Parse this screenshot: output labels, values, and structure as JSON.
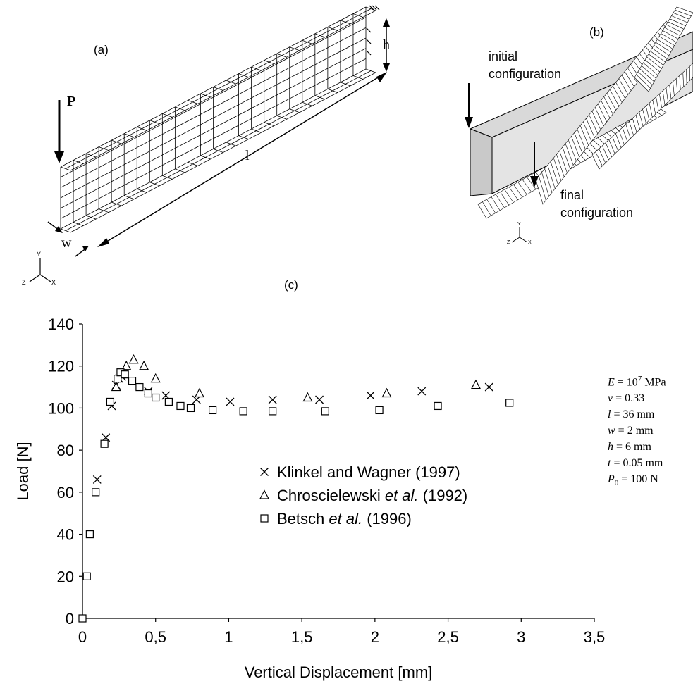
{
  "panels": {
    "a": {
      "label": "(a)",
      "load_label": "P",
      "dim_h": "h",
      "dim_l": "l",
      "dim_w": "w"
    },
    "b": {
      "label": "(b)",
      "initial_label": "initial\nconfiguration",
      "final_label": "final\nconfiguration"
    },
    "c": {
      "label": "(c)"
    }
  },
  "axes_triad": {
    "y": "Y",
    "z": "Z",
    "x": "X"
  },
  "params": [
    {
      "sym": "E",
      "rest": " = 10",
      "sup": "7",
      "tail": " MPa"
    },
    {
      "sym": "ν",
      "rest": " = 0.33",
      "sup": "",
      "tail": ""
    },
    {
      "sym": "l",
      "rest": " = 36 mm",
      "sup": "",
      "tail": ""
    },
    {
      "sym": "w",
      "rest": " = 2 mm",
      "sup": "",
      "tail": ""
    },
    {
      "sym": "h",
      "rest": " = 6 mm",
      "sup": "",
      "tail": ""
    },
    {
      "sym": "t",
      "rest": " = 0.05 mm",
      "sup": "",
      "tail": ""
    },
    {
      "sym": "P",
      "sub": "0",
      "rest": " = 100 N",
      "sup": "",
      "tail": ""
    }
  ],
  "chart_data": {
    "type": "scatter",
    "xlabel": "Vertical Displacement [mm]",
    "ylabel": "Load [N]",
    "xlim": [
      0,
      3.5
    ],
    "ylim": [
      0,
      140
    ],
    "xticks": [
      "0",
      "0,5",
      "1",
      "1,5",
      "2",
      "2,5",
      "3",
      "3,5"
    ],
    "xtick_values": [
      0,
      0.5,
      1,
      1.5,
      2,
      2.5,
      3,
      3.5
    ],
    "yticks": [
      "0",
      "20",
      "40",
      "60",
      "80",
      "100",
      "120",
      "140"
    ],
    "ytick_values": [
      0,
      20,
      40,
      60,
      80,
      100,
      120,
      140
    ],
    "grid": false,
    "legend_position": "center",
    "series": [
      {
        "name": "Klinkel and Wagner (1997)",
        "name_parts": [
          "Klinkel and Wagner (1997)"
        ],
        "marker": "x",
        "x": [
          0.1,
          0.16,
          0.2,
          0.23,
          0.25,
          0.27,
          0.45,
          0.57,
          0.78,
          1.01,
          1.3,
          1.62,
          1.97,
          2.32,
          2.78
        ],
        "y": [
          66,
          86,
          101,
          111,
          114,
          115,
          108,
          106,
          104,
          103,
          104,
          104,
          106,
          108,
          110
        ]
      },
      {
        "name": "Chroscielewski et al. (1992)",
        "name_parts": [
          "Chroscielewski ",
          "et al.",
          "  (1992)"
        ],
        "marker": "triangle",
        "x": [
          0.23,
          0.3,
          0.35,
          0.42,
          0.5,
          0.8,
          1.54,
          2.08,
          2.69
        ],
        "y": [
          110,
          120,
          123,
          120,
          114,
          107,
          105,
          107,
          111
        ]
      },
      {
        "name": "Betsch et al. (1996)",
        "name_parts": [
          "Betsch ",
          "et al.",
          "  (1996)"
        ],
        "marker": "square",
        "x": [
          0.0,
          0.03,
          0.05,
          0.09,
          0.15,
          0.19,
          0.24,
          0.26,
          0.29,
          0.34,
          0.39,
          0.45,
          0.5,
          0.59,
          0.67,
          0.74,
          0.89,
          1.1,
          1.3,
          1.66,
          2.03,
          2.43,
          2.92
        ],
        "y": [
          0,
          20,
          40,
          60,
          83,
          103,
          114,
          117,
          116,
          113,
          110,
          107,
          105,
          103,
          101,
          100,
          99,
          98.5,
          98.5,
          98.5,
          99,
          101,
          102.5
        ]
      }
    ]
  }
}
